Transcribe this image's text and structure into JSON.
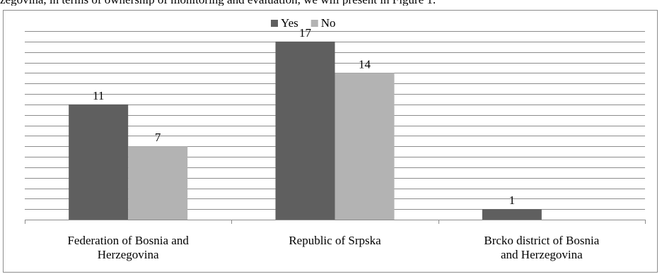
{
  "caption": "zegovina, in terms of ownership of monitoring and evaluation, we will present in Figure 1.",
  "colors": {
    "yes": "#5f5f5f",
    "no": "#b3b3b3",
    "grid": "#8c8c8c",
    "axis": "#8c8c8c"
  },
  "chart_data": {
    "type": "bar",
    "categories": [
      [
        "Federation of Bosnia and",
        "Herzegovina"
      ],
      [
        "Republic of Srpska"
      ],
      [
        "Brcko district of Bosnia",
        "and Herzegovina"
      ]
    ],
    "series": [
      {
        "name": "Yes",
        "values": [
          11,
          17,
          1
        ]
      },
      {
        "name": "No",
        "values": [
          7,
          14,
          null
        ]
      }
    ],
    "data_labels": [
      [
        "11",
        "17",
        "1"
      ],
      [
        "7",
        "14",
        ""
      ]
    ],
    "ylim": [
      0,
      18
    ],
    "grid": true,
    "legend": "top-center",
    "title": "",
    "xlabel": "",
    "ylabel": ""
  }
}
